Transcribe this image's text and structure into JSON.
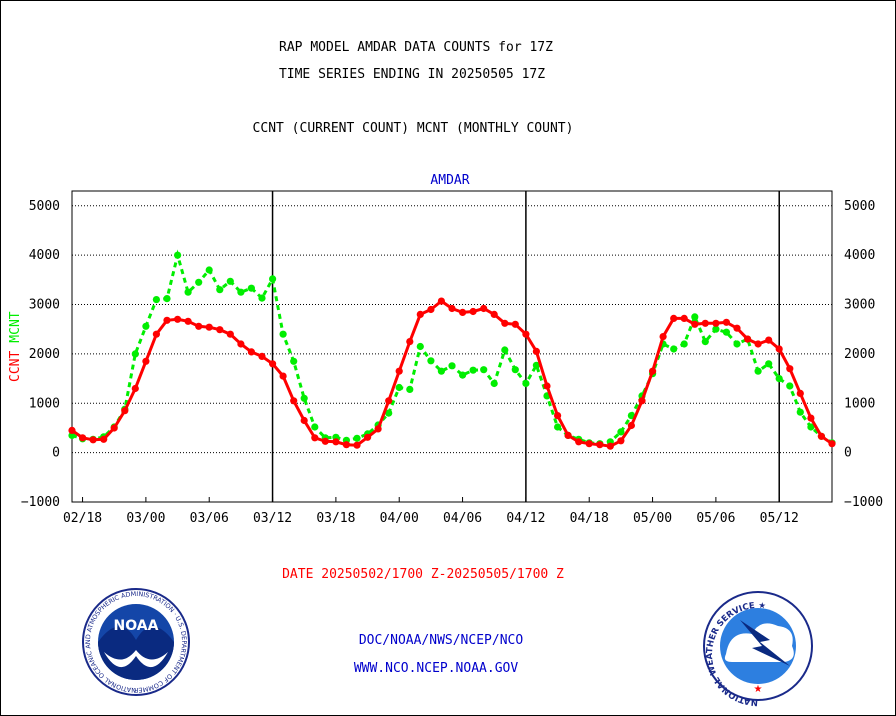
{
  "header": {
    "title_line1": "RAP MODEL AMDAR DATA COUNTS for 17Z",
    "title_line2": "TIME SERIES ENDING IN 20250505 17Z",
    "subtitle": "CCNT (CURRENT COUNT) MCNT (MONTHLY COUNT)"
  },
  "footer": {
    "date_range": "DATE 20250502/1700 Z-20250505/1700 Z",
    "org_line": "DOC/NOAA/NWS/NCEP/NCO",
    "url_line": "WWW.NCO.NCEP.NOAA.GOV",
    "noaa_logo_text": "NOAA",
    "noaa_ring_text": "NATIONAL OCEANIC AND ATMOSPHERIC ADMINISTRATION · U.S. DEPARTMENT OF COMMERCE ·",
    "nws_ring_text": "NATIONAL WEATHER SERVICE ★"
  },
  "colors": {
    "ccnt": "#ff0000",
    "mcnt": "#00ee00",
    "title_text": "#000000",
    "panel_label": "#0000cc",
    "footer_date": "#ff0000",
    "footer_link": "#0000cc"
  },
  "chart_data": {
    "type": "line",
    "panel_label": "AMDAR",
    "ylabel_left": [
      "CCNT",
      "MCNT"
    ],
    "ylim": [
      -1000,
      5300
    ],
    "yticks": [
      -1000,
      0,
      1000,
      2000,
      3000,
      4000,
      5000
    ],
    "ytick_labels": [
      "−1000",
      "0",
      "1000",
      "2000",
      "3000",
      "4000",
      "5000"
    ],
    "xticks": [
      "02/18",
      "03/00",
      "03/06",
      "03/12",
      "03/18",
      "04/00",
      "04/06",
      "04/12",
      "04/18",
      "05/00",
      "05/06",
      "05/12"
    ],
    "xtick_positions_hours": [
      -6,
      0,
      6,
      12,
      18,
      24,
      30,
      36,
      42,
      48,
      54,
      60
    ],
    "xlim_hours": [
      -7,
      65
    ],
    "day_separators_hours": [
      12,
      36,
      60
    ],
    "grid": true,
    "series": [
      {
        "name": "CCNT",
        "color": "#ff0000",
        "style": "solid",
        "x": [
          -7,
          -6,
          -5,
          -4,
          -3,
          -2,
          -1,
          0,
          1,
          2,
          3,
          4,
          5,
          6,
          7,
          8,
          9,
          10,
          11,
          12,
          13,
          14,
          15,
          16,
          17,
          18,
          19,
          20,
          21,
          22,
          23,
          24,
          25,
          26,
          27,
          28,
          29,
          30,
          31,
          32,
          33,
          34,
          35,
          36,
          37,
          38,
          39,
          40,
          41,
          42,
          43,
          44,
          45,
          46,
          47,
          48,
          49,
          50,
          51,
          52,
          53,
          54,
          55,
          56,
          57,
          58,
          59,
          60,
          61,
          62,
          63,
          64,
          65
        ],
        "values": [
          450,
          300,
          260,
          270,
          500,
          850,
          1300,
          1850,
          2400,
          2680,
          2700,
          2660,
          2560,
          2540,
          2490,
          2400,
          2200,
          2040,
          1950,
          1800,
          1550,
          1050,
          650,
          300,
          230,
          220,
          160,
          150,
          310,
          480,
          1050,
          1650,
          2250,
          2800,
          2900,
          3070,
          2920,
          2840,
          2860,
          2920,
          2800,
          2620,
          2600,
          2400,
          2050,
          1350,
          750,
          350,
          220,
          180,
          160,
          130,
          240,
          550,
          1050,
          1650,
          2350,
          2720,
          2720,
          2600,
          2620,
          2620,
          2640,
          2520,
          2300,
          2200,
          2280,
          2100,
          1700,
          1200,
          700,
          330,
          180
        ]
      },
      {
        "name": "MCNT",
        "color": "#00ee00",
        "style": "dashed",
        "x": [
          -7,
          -6,
          -5,
          -4,
          -3,
          -2,
          -1,
          0,
          1,
          2,
          3,
          4,
          5,
          6,
          7,
          8,
          9,
          10,
          11,
          12,
          13,
          14,
          15,
          16,
          17,
          18,
          19,
          20,
          21,
          22,
          23,
          24,
          25,
          26,
          27,
          28,
          29,
          30,
          31,
          32,
          33,
          34,
          35,
          36,
          37,
          38,
          39,
          40,
          41,
          42,
          43,
          44,
          45,
          46,
          47,
          48,
          49,
          50,
          51,
          52,
          53,
          54,
          55,
          56,
          57,
          58,
          59,
          60,
          61,
          62,
          63,
          64,
          65
        ],
        "values": [
          350,
          280,
          270,
          320,
          520,
          880,
          2000,
          2560,
          3100,
          3120,
          4000,
          3250,
          3450,
          3700,
          3300,
          3470,
          3250,
          3330,
          3130,
          3520,
          2400,
          1850,
          1100,
          520,
          300,
          310,
          250,
          290,
          380,
          560,
          800,
          1320,
          1280,
          2150,
          1860,
          1650,
          1760,
          1570,
          1670,
          1680,
          1400,
          2080,
          1680,
          1400,
          1770,
          1150,
          520,
          350,
          270,
          200,
          180,
          220,
          420,
          750,
          1150,
          1600,
          2200,
          2100,
          2200,
          2750,
          2250,
          2500,
          2440,
          2200,
          2300,
          1650,
          1800,
          1500,
          1350,
          820,
          520,
          330,
          200
        ]
      }
    ]
  }
}
